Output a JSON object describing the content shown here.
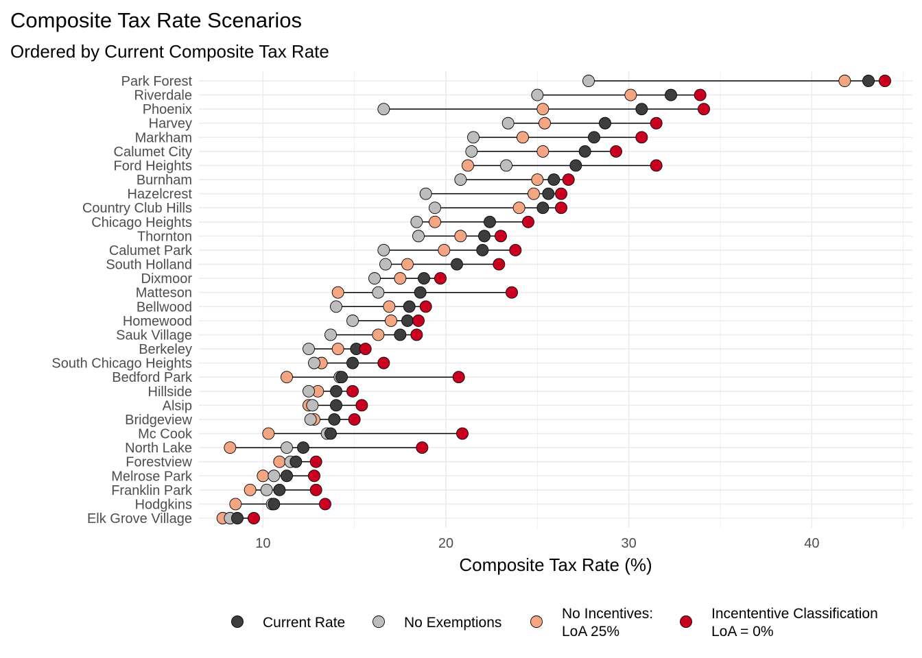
{
  "title": "Composite Tax Rate Scenarios",
  "subtitle": "Ordered by Current Composite Tax Rate",
  "chart_data": {
    "type": "dumbbell",
    "title": "Composite Tax Rate Scenarios",
    "subtitle": "Ordered by Current Composite Tax Rate",
    "xlabel": "Composite Tax Rate (%)",
    "ylabel": "",
    "xlim": [
      6.5,
      45.5
    ],
    "x_ticks": [
      10,
      20,
      30,
      40
    ],
    "grid": true,
    "legend_position": "bottom",
    "series": [
      {
        "key": "current",
        "name": "Current Rate",
        "color": "#3d3d3d"
      },
      {
        "key": "noexempt",
        "name": "No Exemptions",
        "color": "#bdbdbd"
      },
      {
        "key": "noincent",
        "name": "No Incentives:\nLoA 25%",
        "color": "#f4a582"
      },
      {
        "key": "incent",
        "name": "Incententive Classification\nLoA = 0%",
        "color": "#ca0020"
      }
    ],
    "categories": [
      {
        "name": "Park Forest",
        "current": 43.1,
        "noexempt": 27.8,
        "noincent": 41.8,
        "incent": 44.0
      },
      {
        "name": "Riverdale",
        "current": 32.3,
        "noexempt": 25.0,
        "noincent": 30.1,
        "incent": 33.9
      },
      {
        "name": "Phoenix",
        "current": 30.7,
        "noexempt": 16.6,
        "noincent": 25.3,
        "incent": 34.1
      },
      {
        "name": "Harvey",
        "current": 28.7,
        "noexempt": 23.4,
        "noincent": 25.4,
        "incent": 31.5
      },
      {
        "name": "Markham",
        "current": 28.1,
        "noexempt": 21.5,
        "noincent": 24.2,
        "incent": 30.7
      },
      {
        "name": "Calumet City",
        "current": 27.6,
        "noexempt": 21.4,
        "noincent": 25.3,
        "incent": 29.3
      },
      {
        "name": "Ford Heights",
        "current": 27.1,
        "noexempt": 23.3,
        "noincent": 21.2,
        "incent": 31.5
      },
      {
        "name": "Burnham",
        "current": 25.9,
        "noexempt": 20.8,
        "noincent": 25.0,
        "incent": 26.7
      },
      {
        "name": "Hazelcrest",
        "current": 25.6,
        "noexempt": 18.9,
        "noincent": 24.8,
        "incent": 26.3
      },
      {
        "name": "Country Club Hills",
        "current": 25.3,
        "noexempt": 19.4,
        "noincent": 24.0,
        "incent": 26.3
      },
      {
        "name": "Chicago Heights",
        "current": 22.4,
        "noexempt": 18.4,
        "noincent": 19.4,
        "incent": 24.5
      },
      {
        "name": "Thornton",
        "current": 22.1,
        "noexempt": 18.5,
        "noincent": 20.8,
        "incent": 23.0
      },
      {
        "name": "Calumet Park",
        "current": 22.0,
        "noexempt": 16.6,
        "noincent": 19.9,
        "incent": 23.8
      },
      {
        "name": "South Holland",
        "current": 20.6,
        "noexempt": 16.7,
        "noincent": 17.9,
        "incent": 22.9
      },
      {
        "name": "Dixmoor",
        "current": 18.8,
        "noexempt": 16.1,
        "noincent": 17.5,
        "incent": 19.7
      },
      {
        "name": "Matteson",
        "current": 18.6,
        "noexempt": 16.3,
        "noincent": 14.1,
        "incent": 23.6
      },
      {
        "name": "Bellwood",
        "current": 18.0,
        "noexempt": 14.0,
        "noincent": 16.9,
        "incent": 18.9
      },
      {
        "name": "Homewood",
        "current": 17.9,
        "noexempt": 14.9,
        "noincent": 17.0,
        "incent": 18.5
      },
      {
        "name": "Sauk Village",
        "current": 17.5,
        "noexempt": 13.7,
        "noincent": 16.3,
        "incent": 18.4
      },
      {
        "name": "Berkeley",
        "current": 15.1,
        "noexempt": 12.5,
        "noincent": 14.1,
        "incent": 15.6
      },
      {
        "name": "South Chicago Heights",
        "current": 14.9,
        "noexempt": 12.8,
        "noincent": 13.2,
        "incent": 16.6
      },
      {
        "name": "Bedford Park",
        "current": 14.3,
        "noexempt": 14.2,
        "noincent": 11.3,
        "incent": 20.7
      },
      {
        "name": "Hillside",
        "current": 14.0,
        "noexempt": 12.5,
        "noincent": 13.0,
        "incent": 14.9
      },
      {
        "name": "Alsip",
        "current": 14.0,
        "noexempt": 12.7,
        "noincent": 12.5,
        "incent": 15.4
      },
      {
        "name": "Bridgeview",
        "current": 13.9,
        "noexempt": 12.6,
        "noincent": 12.8,
        "incent": 15.0
      },
      {
        "name": "Mc Cook",
        "current": 13.7,
        "noexempt": 13.5,
        "noincent": 10.3,
        "incent": 20.9
      },
      {
        "name": "North Lake",
        "current": 12.2,
        "noexempt": 11.3,
        "noincent": 8.2,
        "incent": 18.7
      },
      {
        "name": "Forestview",
        "current": 11.8,
        "noexempt": 11.5,
        "noincent": 10.9,
        "incent": 12.9
      },
      {
        "name": "Melrose Park",
        "current": 11.3,
        "noexempt": 10.6,
        "noincent": 10.0,
        "incent": 12.8
      },
      {
        "name": "Franklin Park",
        "current": 10.9,
        "noexempt": 10.2,
        "noincent": 9.3,
        "incent": 12.9
      },
      {
        "name": "Hodgkins",
        "current": 10.6,
        "noexempt": 10.5,
        "noincent": 8.5,
        "incent": 13.4
      },
      {
        "name": "Elk Grove Village",
        "current": 8.6,
        "noexempt": 8.2,
        "noincent": 7.8,
        "incent": 9.5
      }
    ]
  }
}
